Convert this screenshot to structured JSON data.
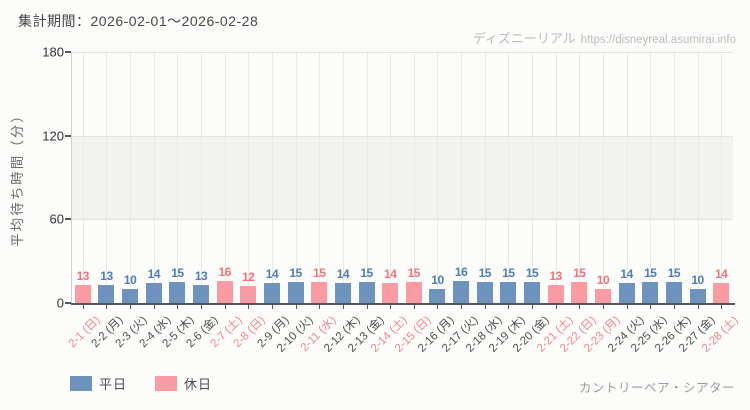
{
  "header": {
    "title": "集計期間：2026-02-01～2026-02-28",
    "brand": "ディズニーリアル",
    "brand_url": "https://disneyreal.asumirai.info"
  },
  "legend": {
    "weekday_label": "平日",
    "holiday_label": "休日"
  },
  "footer": {
    "attraction": "カントリーベア・シアター"
  },
  "colors": {
    "weekday_bar": "#6e94be",
    "holiday_bar": "#f89ba3",
    "weekday_value_label": "#4e7cae",
    "holiday_value_label": "#ef727c",
    "weekday_tick_label": "#4d4d4d",
    "holiday_tick_label": "#f2828b",
    "band_fill": "#f2f2ef",
    "grid_line": "#e8e8e4",
    "axis_line": "#54575a"
  },
  "chart_data": {
    "type": "bar",
    "title": "集計期間：2026-02-01～2026-02-28",
    "xlabel": "",
    "ylabel": "平均待ち時間（分）",
    "ylim": [
      0,
      180
    ],
    "yticks": [
      0,
      60,
      120,
      180
    ],
    "grid": true,
    "legend_position": "bottom-left",
    "legend_entries": [
      "平日",
      "休日"
    ],
    "days": [
      {
        "label": "2-1 (日)",
        "value": 13,
        "type": "休日"
      },
      {
        "label": "2-2 (月)",
        "value": 13,
        "type": "平日"
      },
      {
        "label": "2-3 (火)",
        "value": 10,
        "type": "平日"
      },
      {
        "label": "2-4 (水)",
        "value": 14,
        "type": "平日"
      },
      {
        "label": "2-5 (木)",
        "value": 15,
        "type": "平日"
      },
      {
        "label": "2-6 (金)",
        "value": 13,
        "type": "平日"
      },
      {
        "label": "2-7 (土)",
        "value": 16,
        "type": "休日"
      },
      {
        "label": "2-8 (日)",
        "value": 12,
        "type": "休日"
      },
      {
        "label": "2-9 (月)",
        "value": 14,
        "type": "平日"
      },
      {
        "label": "2-10 (火)",
        "value": 15,
        "type": "平日"
      },
      {
        "label": "2-11 (水)",
        "value": 15,
        "type": "休日"
      },
      {
        "label": "2-12 (木)",
        "value": 14,
        "type": "平日"
      },
      {
        "label": "2-13 (金)",
        "value": 15,
        "type": "平日"
      },
      {
        "label": "2-14 (土)",
        "value": 14,
        "type": "休日"
      },
      {
        "label": "2-15 (日)",
        "value": 15,
        "type": "休日"
      },
      {
        "label": "2-16 (月)",
        "value": 10,
        "type": "平日"
      },
      {
        "label": "2-17 (火)",
        "value": 16,
        "type": "平日"
      },
      {
        "label": "2-18 (水)",
        "value": 15,
        "type": "平日"
      },
      {
        "label": "2-19 (木)",
        "value": 15,
        "type": "平日"
      },
      {
        "label": "2-20 (金)",
        "value": 15,
        "type": "平日"
      },
      {
        "label": "2-21 (土)",
        "value": 13,
        "type": "休日"
      },
      {
        "label": "2-22 (日)",
        "value": 15,
        "type": "休日"
      },
      {
        "label": "2-23 (月)",
        "value": 10,
        "type": "休日"
      },
      {
        "label": "2-24 (火)",
        "value": 14,
        "type": "平日"
      },
      {
        "label": "2-25 (水)",
        "value": 15,
        "type": "平日"
      },
      {
        "label": "2-26 (木)",
        "value": 15,
        "type": "平日"
      },
      {
        "label": "2-27 (金)",
        "value": 10,
        "type": "平日"
      },
      {
        "label": "2-28 (土)",
        "value": 14,
        "type": "休日"
      }
    ]
  }
}
